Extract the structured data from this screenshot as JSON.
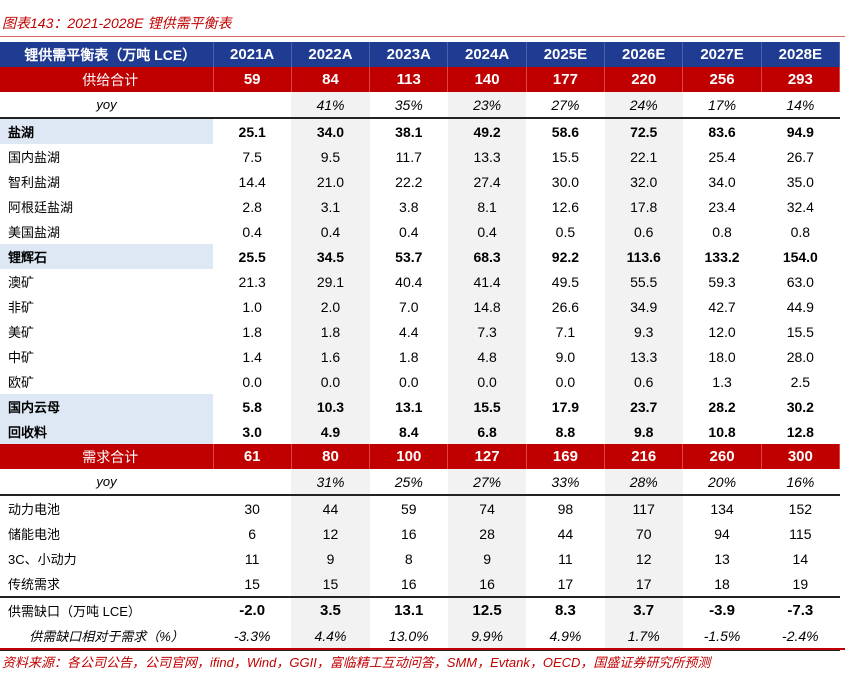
{
  "title": "图表143：2021-2028E 锂供需平衡表",
  "header": {
    "label": "锂供需平衡表（万吨 LCE）",
    "years": [
      "2021A",
      "2022A",
      "2023A",
      "2024A",
      "2025E",
      "2026E",
      "2027E",
      "2028E"
    ]
  },
  "rows": [
    {
      "type": "tot",
      "label": "供给合计",
      "values": [
        "59",
        "84",
        "113",
        "140",
        "177",
        "220",
        "256",
        "293"
      ]
    },
    {
      "type": "yoy",
      "label": "yoy",
      "values": [
        "",
        "41%",
        "35%",
        "23%",
        "27%",
        "24%",
        "17%",
        "14%"
      ]
    },
    {
      "type": "bold sep",
      "label": "盐湖",
      "values": [
        "25.1",
        "34.0",
        "38.1",
        "49.2",
        "58.6",
        "72.5",
        "83.6",
        "94.9"
      ]
    },
    {
      "type": "",
      "label": "国内盐湖",
      "values": [
        "7.5",
        "9.5",
        "11.7",
        "13.3",
        "15.5",
        "22.1",
        "25.4",
        "26.7"
      ]
    },
    {
      "type": "",
      "label": "智利盐湖",
      "values": [
        "14.4",
        "21.0",
        "22.2",
        "27.4",
        "30.0",
        "32.0",
        "34.0",
        "35.0"
      ]
    },
    {
      "type": "",
      "label": "阿根廷盐湖",
      "values": [
        "2.8",
        "3.1",
        "3.8",
        "8.1",
        "12.6",
        "17.8",
        "23.4",
        "32.4"
      ]
    },
    {
      "type": "",
      "label": "美国盐湖",
      "values": [
        "0.4",
        "0.4",
        "0.4",
        "0.4",
        "0.5",
        "0.6",
        "0.8",
        "0.8"
      ]
    },
    {
      "type": "bold",
      "label": "锂辉石",
      "values": [
        "25.5",
        "34.5",
        "53.7",
        "68.3",
        "92.2",
        "113.6",
        "133.2",
        "154.0"
      ]
    },
    {
      "type": "",
      "label": "澳矿",
      "values": [
        "21.3",
        "29.1",
        "40.4",
        "41.4",
        "49.5",
        "55.5",
        "59.3",
        "63.0"
      ]
    },
    {
      "type": "",
      "label": "非矿",
      "values": [
        "1.0",
        "2.0",
        "7.0",
        "14.8",
        "26.6",
        "34.9",
        "42.7",
        "44.9"
      ]
    },
    {
      "type": "",
      "label": "美矿",
      "values": [
        "1.8",
        "1.8",
        "4.4",
        "7.3",
        "7.1",
        "9.3",
        "12.0",
        "15.5"
      ]
    },
    {
      "type": "",
      "label": "中矿",
      "values": [
        "1.4",
        "1.6",
        "1.8",
        "4.8",
        "9.0",
        "13.3",
        "18.0",
        "28.0"
      ]
    },
    {
      "type": "",
      "label": "欧矿",
      "values": [
        "0.0",
        "0.0",
        "0.0",
        "0.0",
        "0.0",
        "0.6",
        "1.3",
        "2.5"
      ]
    },
    {
      "type": "bold",
      "label": "国内云母",
      "values": [
        "5.8",
        "10.3",
        "13.1",
        "15.5",
        "17.9",
        "23.7",
        "28.2",
        "30.2"
      ]
    },
    {
      "type": "bold",
      "label": "回收料",
      "values": [
        "3.0",
        "4.9",
        "8.4",
        "6.8",
        "8.8",
        "9.8",
        "10.8",
        "12.8"
      ]
    },
    {
      "type": "tot",
      "label": "需求合计",
      "values": [
        "61",
        "80",
        "100",
        "127",
        "169",
        "216",
        "260",
        "300"
      ]
    },
    {
      "type": "yoy",
      "label": "yoy",
      "values": [
        "",
        "31%",
        "25%",
        "27%",
        "33%",
        "28%",
        "20%",
        "16%"
      ]
    },
    {
      "type": "sep",
      "label": "动力电池",
      "values": [
        "30",
        "44",
        "59",
        "74",
        "98",
        "117",
        "134",
        "152"
      ]
    },
    {
      "type": "",
      "label": "储能电池",
      "values": [
        "6",
        "12",
        "16",
        "28",
        "44",
        "70",
        "94",
        "115"
      ]
    },
    {
      "type": "",
      "label": "3C、小动力",
      "values": [
        "11",
        "9",
        "8",
        "9",
        "11",
        "12",
        "13",
        "14"
      ]
    },
    {
      "type": "",
      "label": "传统需求",
      "values": [
        "15",
        "15",
        "16",
        "16",
        "17",
        "17",
        "18",
        "19"
      ]
    },
    {
      "type": "gap sep",
      "label": "供需缺口（万吨 LCE）",
      "values": [
        "-2.0",
        "3.5",
        "13.1",
        "12.5",
        "8.3",
        "3.7",
        "-3.9",
        "-7.3"
      ]
    },
    {
      "type": "yoy last",
      "label": "供需缺口相对于需求（%）",
      "values": [
        "-3.3%",
        "4.4%",
        "13.0%",
        "9.9%",
        "4.9%",
        "1.7%",
        "-1.5%",
        "-2.4%"
      ]
    }
  ],
  "source": "资料来源：各公司公告，公司官网，ifind，Wind，GGII，富临精工互动问答，SMM，Evtank，OECD，国盛证券研究所预测"
}
